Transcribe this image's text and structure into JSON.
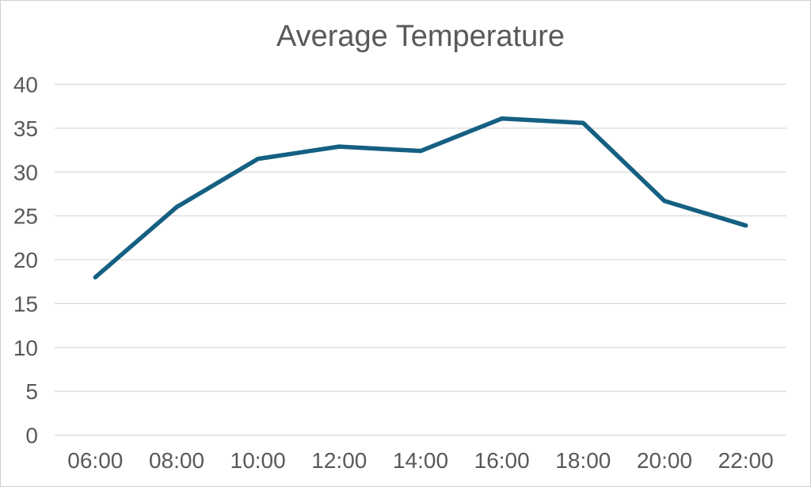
{
  "chart_data": {
    "type": "line",
    "title": "Average Temperature",
    "categories": [
      "06:00",
      "08:00",
      "10:00",
      "12:00",
      "14:00",
      "16:00",
      "18:00",
      "20:00",
      "22:00"
    ],
    "series": [
      {
        "name": "Average Temperature",
        "values": [
          18,
          26,
          31.5,
          32.9,
          32.4,
          36.1,
          35.6,
          26.7,
          23.9
        ]
      }
    ],
    "xlabel": "",
    "ylabel": "",
    "ylim": [
      0,
      40
    ],
    "y_ticks": [
      0,
      5,
      10,
      15,
      20,
      25,
      30,
      35,
      40
    ],
    "grid": "horizontal",
    "legend": "none"
  },
  "colors": {
    "line": "#156082",
    "gridline": "#d9d9d9",
    "tick_label": "#595959",
    "title": "#595959",
    "background": "#ffffff",
    "frame_border": "#d0d0d0"
  }
}
